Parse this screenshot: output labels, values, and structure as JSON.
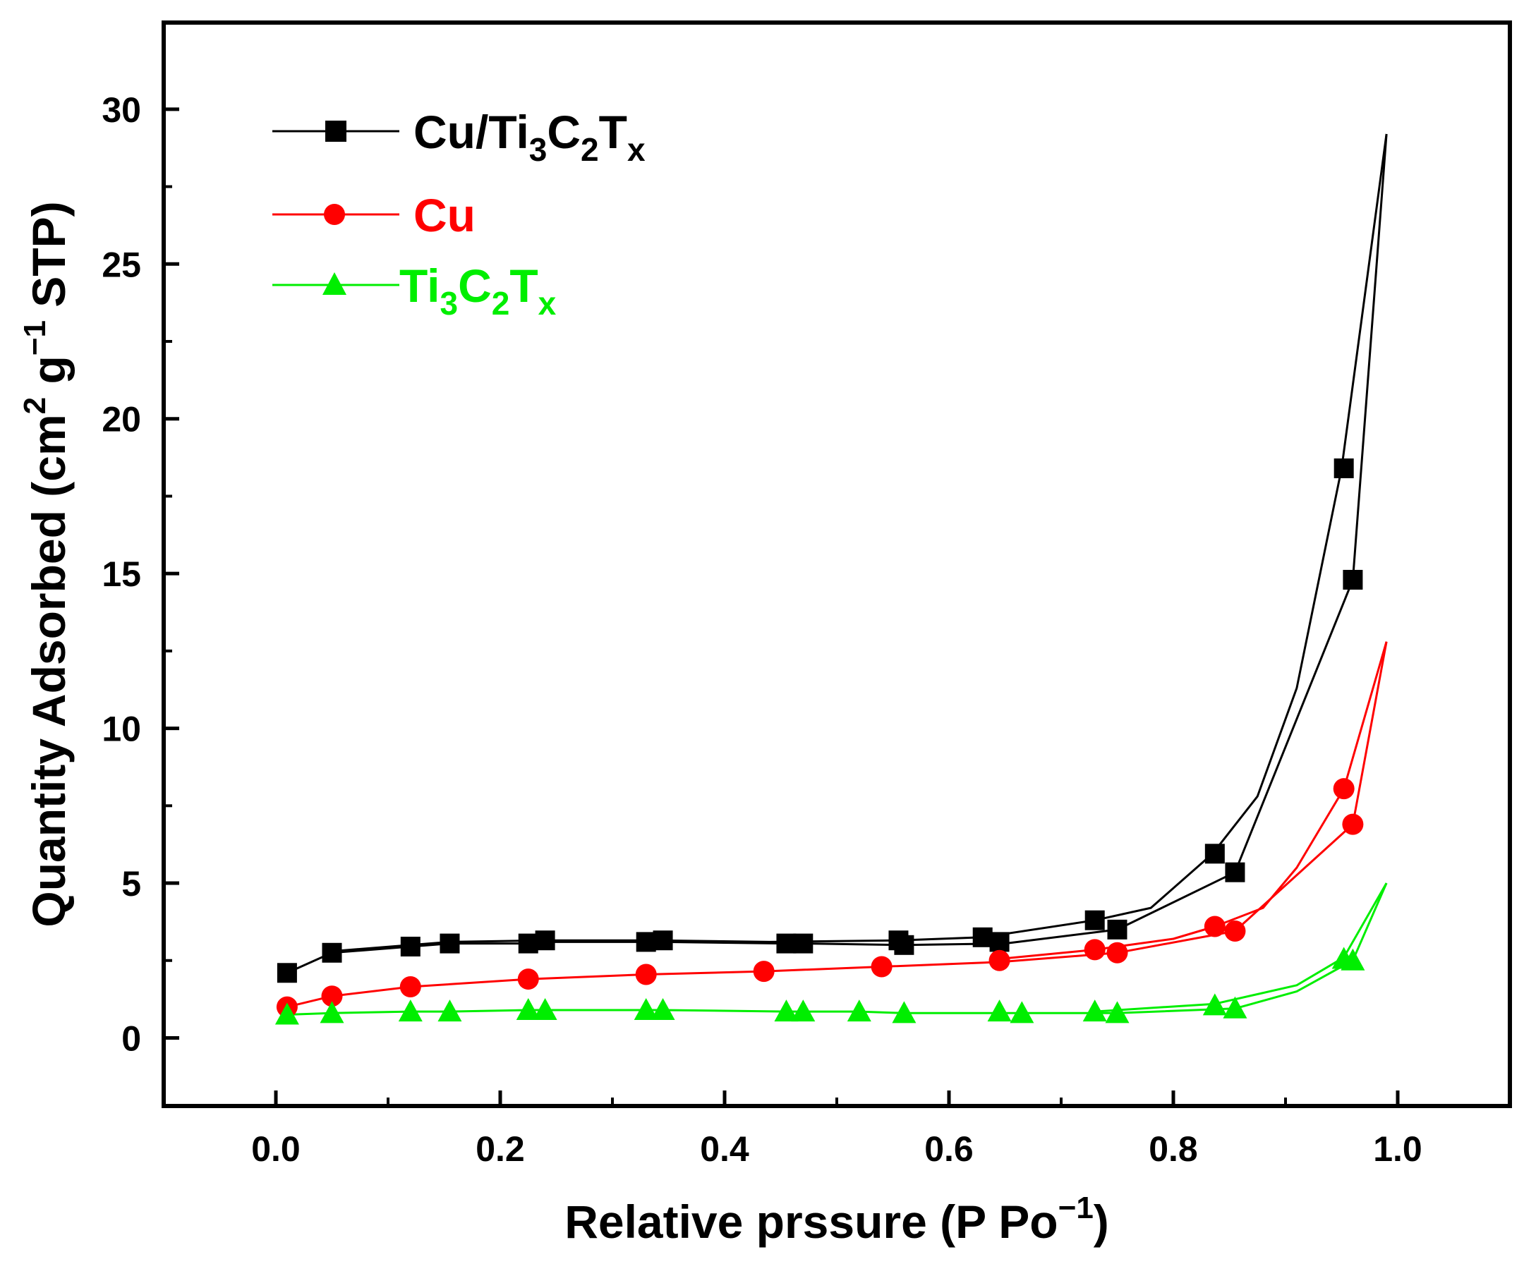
{
  "chart_data": {
    "type": "line",
    "title": "",
    "xlabel": "Relative prssure (P Po−1)",
    "xlabel_parts": {
      "text": "Relative prssure (P Po",
      "sup": "−1",
      "close": ")"
    },
    "ylabel": "Quantity Adsorbed (cm2 g−1 STP)",
    "ylabel_parts": {
      "a": "Quantity Adsorbed (cm",
      "sup1": "2",
      "b": " g",
      "sup2": "−1",
      "c": " STP)"
    },
    "xlim": [
      -0.1,
      1.1
    ],
    "ylim": [
      -2.2,
      32.8
    ],
    "xticks": [
      "0.0",
      "0.2",
      "0.4",
      "0.6",
      "0.8",
      "1.0"
    ],
    "xtick_values": [
      0,
      0.2,
      0.4,
      0.6,
      0.8,
      1.0
    ],
    "yticks": [
      "0",
      "5",
      "10",
      "15",
      "20",
      "25",
      "30"
    ],
    "ytick_values": [
      0,
      5,
      10,
      15,
      20,
      25,
      30
    ],
    "legend_position": "top-left",
    "series": [
      {
        "name": "Cu/Ti3C2Tx",
        "label_main": "Cu/Ti",
        "label_sub1": "3",
        "label_mid": "C",
        "label_sub2": "2",
        "label_end": "T",
        "label_sub3": "x",
        "color": "#000000",
        "marker": "square",
        "adsorption": {
          "x": [
            0.01,
            0.05,
            0.12,
            0.155,
            0.225,
            0.24,
            0.33,
            0.345,
            0.455,
            0.47,
            0.56,
            0.65,
            0.75,
            0.855,
            0.96,
            0.99
          ],
          "y": [
            2.1,
            2.75,
            2.95,
            3.05,
            3.05,
            3.1,
            3.1,
            3.1,
            3.05,
            3.05,
            3.0,
            3.05,
            3.5,
            5.35,
            14.8,
            29.2
          ]
        },
        "desorption": {
          "x": [
            0.99,
            0.95,
            0.91,
            0.875,
            0.835,
            0.78,
            0.73,
            0.63,
            0.555,
            0.44,
            0.34,
            0.24,
            0.155,
            0.12,
            0.05
          ],
          "y": [
            29.2,
            18.4,
            11.3,
            7.8,
            5.95,
            4.2,
            3.8,
            3.25,
            3.15,
            3.1,
            3.15,
            3.15,
            3.1,
            3.0,
            2.8
          ]
        },
        "markers": {
          "x": [
            0.01,
            0.05,
            0.12,
            0.155,
            0.225,
            0.24,
            0.33,
            0.345,
            0.455,
            0.47,
            0.555,
            0.56,
            0.63,
            0.645,
            0.73,
            0.75,
            0.837,
            0.855,
            0.952,
            0.96
          ],
          "y": [
            2.1,
            2.75,
            2.95,
            3.05,
            3.05,
            3.15,
            3.1,
            3.15,
            3.05,
            3.05,
            3.15,
            3.0,
            3.25,
            3.1,
            3.8,
            3.5,
            5.95,
            5.35,
            18.4,
            14.8
          ]
        }
      },
      {
        "name": "Cu",
        "label_main": "Cu",
        "color": "#ff0000",
        "marker": "circle",
        "adsorption": {
          "x": [
            0.01,
            0.05,
            0.12,
            0.225,
            0.33,
            0.435,
            0.54,
            0.645,
            0.75,
            0.855,
            0.96,
            0.99
          ],
          "y": [
            1.0,
            1.35,
            1.65,
            1.9,
            2.05,
            2.15,
            2.3,
            2.45,
            2.75,
            3.45,
            6.9,
            12.8
          ]
        },
        "desorption": {
          "x": [
            0.99,
            0.952,
            0.91,
            0.88,
            0.837,
            0.8,
            0.73,
            0.645
          ],
          "y": [
            12.8,
            8.05,
            5.5,
            4.2,
            3.6,
            3.2,
            2.85,
            2.55
          ]
        },
        "markers": {
          "x": [
            0.01,
            0.05,
            0.12,
            0.225,
            0.33,
            0.435,
            0.54,
            0.645,
            0.73,
            0.75,
            0.837,
            0.855,
            0.952,
            0.96
          ],
          "y": [
            1.0,
            1.35,
            1.65,
            1.9,
            2.05,
            2.15,
            2.3,
            2.5,
            2.85,
            2.75,
            3.6,
            3.45,
            8.05,
            6.9
          ]
        }
      },
      {
        "name": "Ti3C2Tx",
        "label_main": "Ti",
        "label_sub1": "3",
        "label_mid": "C",
        "label_sub2": "2",
        "label_end": "T",
        "label_sub3": "x",
        "color": "#00ee00",
        "marker": "triangle",
        "adsorption": {
          "x": [
            0.01,
            0.05,
            0.12,
            0.155,
            0.225,
            0.24,
            0.33,
            0.345,
            0.455,
            0.47,
            0.52,
            0.56,
            0.645,
            0.665,
            0.73,
            0.75,
            0.855,
            0.91,
            0.96,
            0.99
          ],
          "y": [
            0.75,
            0.8,
            0.85,
            0.85,
            0.9,
            0.9,
            0.9,
            0.9,
            0.85,
            0.85,
            0.85,
            0.8,
            0.8,
            0.8,
            0.8,
            0.8,
            0.95,
            1.5,
            2.5,
            5.0
          ]
        },
        "desorption": {
          "x": [
            0.99,
            0.952,
            0.91,
            0.837,
            0.73
          ],
          "y": [
            5.0,
            2.6,
            1.7,
            1.1,
            0.85
          ]
        },
        "markers": {
          "x": [
            0.01,
            0.05,
            0.12,
            0.155,
            0.225,
            0.24,
            0.33,
            0.345,
            0.455,
            0.47,
            0.52,
            0.56,
            0.645,
            0.665,
            0.73,
            0.75,
            0.837,
            0.855,
            0.952,
            0.96
          ],
          "y": [
            0.75,
            0.8,
            0.85,
            0.85,
            0.9,
            0.9,
            0.9,
            0.9,
            0.85,
            0.85,
            0.85,
            0.8,
            0.85,
            0.8,
            0.85,
            0.8,
            1.05,
            0.95,
            2.55,
            2.5
          ]
        }
      }
    ]
  }
}
